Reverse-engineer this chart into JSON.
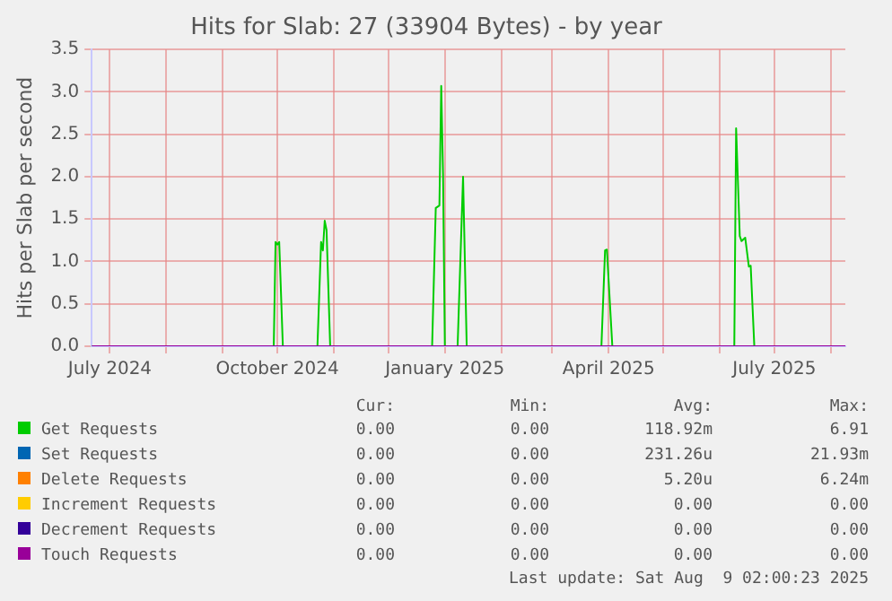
{
  "chart_data": {
    "type": "line",
    "title": "Hits for Slab: 27 (33904 Bytes) - by year",
    "ylabel": "Hits per Slab per second",
    "x": [
      "2024-06-21",
      "2024-09-29",
      "2024-09-30",
      "2024-10-01",
      "2024-10-02",
      "2024-10-04",
      "2024-10-23",
      "2024-10-25",
      "2024-10-26",
      "2024-10-27",
      "2024-10-28",
      "2024-10-30",
      "2024-12-25",
      "2024-12-27",
      "2024-12-29",
      "2024-12-30",
      "2024-12-31",
      "2025-01-01",
      "2025-01-08",
      "2025-01-11",
      "2025-01-13",
      "2025-03-28",
      "2025-03-30",
      "2025-03-31",
      "2025-04-03",
      "2025-06-09",
      "2025-06-10",
      "2025-06-12",
      "2025-06-13",
      "2025-06-15",
      "2025-06-17",
      "2025-06-18",
      "2025-06-20",
      "2025-08-09"
    ],
    "series": [
      {
        "name": "Get Requests",
        "color": "#00cc00",
        "values": [
          0,
          0,
          1.23,
          1.2,
          1.23,
          0,
          0,
          1.23,
          1.13,
          1.48,
          1.37,
          0,
          0,
          1.63,
          1.66,
          3.07,
          2.03,
          0,
          0,
          2.0,
          0,
          0,
          1.13,
          1.14,
          0,
          0,
          2.57,
          1.3,
          1.24,
          1.28,
          0.94,
          0.95,
          0,
          0
        ]
      },
      {
        "name": "Set Requests",
        "color": "#0066b3",
        "values": [
          null,
          null,
          null,
          null,
          null,
          null,
          null,
          null,
          null,
          null,
          null,
          null,
          null,
          null,
          null,
          null,
          null,
          null,
          null,
          null,
          null,
          null,
          null,
          null,
          null,
          null,
          null,
          null,
          null,
          null,
          null,
          null,
          null,
          null
        ]
      },
      {
        "name": "Delete Requests",
        "color": "#ff8000",
        "values": [
          null,
          null,
          null,
          null,
          null,
          null,
          null,
          null,
          null,
          null,
          null,
          null,
          null,
          null,
          null,
          null,
          null,
          null,
          null,
          null,
          null,
          null,
          null,
          null,
          null,
          null,
          null,
          null,
          null,
          null,
          null,
          null,
          null,
          null
        ]
      },
      {
        "name": "Increment Requests",
        "color": "#ffcc00",
        "values": [
          null,
          null,
          null,
          null,
          null,
          null,
          null,
          null,
          null,
          null,
          null,
          null,
          null,
          null,
          null,
          null,
          null,
          null,
          null,
          null,
          null,
          null,
          null,
          null,
          null,
          null,
          null,
          null,
          null,
          null,
          null,
          null,
          null,
          null
        ]
      },
      {
        "name": "Decrement Requests",
        "color": "#330099",
        "values": [
          null,
          null,
          null,
          null,
          null,
          null,
          null,
          null,
          null,
          null,
          null,
          null,
          null,
          null,
          null,
          null,
          null,
          null,
          null,
          null,
          null,
          null,
          null,
          null,
          null,
          null,
          null,
          null,
          null,
          null,
          null,
          null,
          null,
          null
        ]
      },
      {
        "name": "Touch Requests",
        "color": "#990099",
        "values": [
          0,
          0,
          0,
          0,
          0,
          0,
          0,
          0,
          0,
          0,
          0,
          0,
          0,
          0,
          0,
          0,
          0,
          0,
          0,
          0,
          0,
          0,
          0,
          0,
          0,
          0,
          0,
          0,
          0,
          0,
          0,
          0,
          0,
          0
        ]
      }
    ],
    "xlim": [
      "2024-06-21",
      "2025-08-09"
    ],
    "xticks": [
      {
        "value": "2024-07-01",
        "label": "July 2024"
      },
      {
        "value": "2024-08-01",
        "label": null
      },
      {
        "value": "2024-09-01",
        "label": null
      },
      {
        "value": "2024-10-01",
        "label": "October 2024"
      },
      {
        "value": "2024-11-01",
        "label": null
      },
      {
        "value": "2024-12-01",
        "label": null
      },
      {
        "value": "2025-01-01",
        "label": "January 2025"
      },
      {
        "value": "2025-02-01",
        "label": null
      },
      {
        "value": "2025-03-01",
        "label": null
      },
      {
        "value": "2025-04-01",
        "label": "April 2025"
      },
      {
        "value": "2025-05-01",
        "label": null
      },
      {
        "value": "2025-06-01",
        "label": null
      },
      {
        "value": "2025-07-01",
        "label": "July 2025"
      },
      {
        "value": "2025-08-01",
        "label": null
      }
    ],
    "ylim": [
      0,
      3.5
    ],
    "yticks": [
      {
        "value": 0,
        "label": "0.0"
      },
      {
        "value": 0.5,
        "label": "0.5"
      },
      {
        "value": 1,
        "label": "1.0"
      },
      {
        "value": 1.5,
        "label": "1.5"
      },
      {
        "value": 2,
        "label": "2.0"
      },
      {
        "value": 2.5,
        "label": "2.5"
      },
      {
        "value": 3,
        "label": "3.0"
      },
      {
        "value": 3.5,
        "label": "3.5"
      }
    ],
    "grid": true,
    "legend": "bottom",
    "marker": "none",
    "line_style": "solid",
    "annotations": [
      "Cur:",
      "Min:",
      "Avg:",
      "Max:",
      "0.00",
      "0.00",
      "118.92m",
      "6.91",
      "0.00",
      "0.00",
      "231.26u",
      "21.93m",
      "0.00",
      "0.00",
      "5.20u",
      "6.24m",
      "0.00",
      "0.00",
      "0.00",
      "0.00",
      "0.00",
      "0.00",
      "0.00",
      "0.00",
      "0.00",
      "0.00",
      "0.00",
      "0.00",
      "Last update: Sat Aug  9 02:00:23 2025"
    ]
  }
}
